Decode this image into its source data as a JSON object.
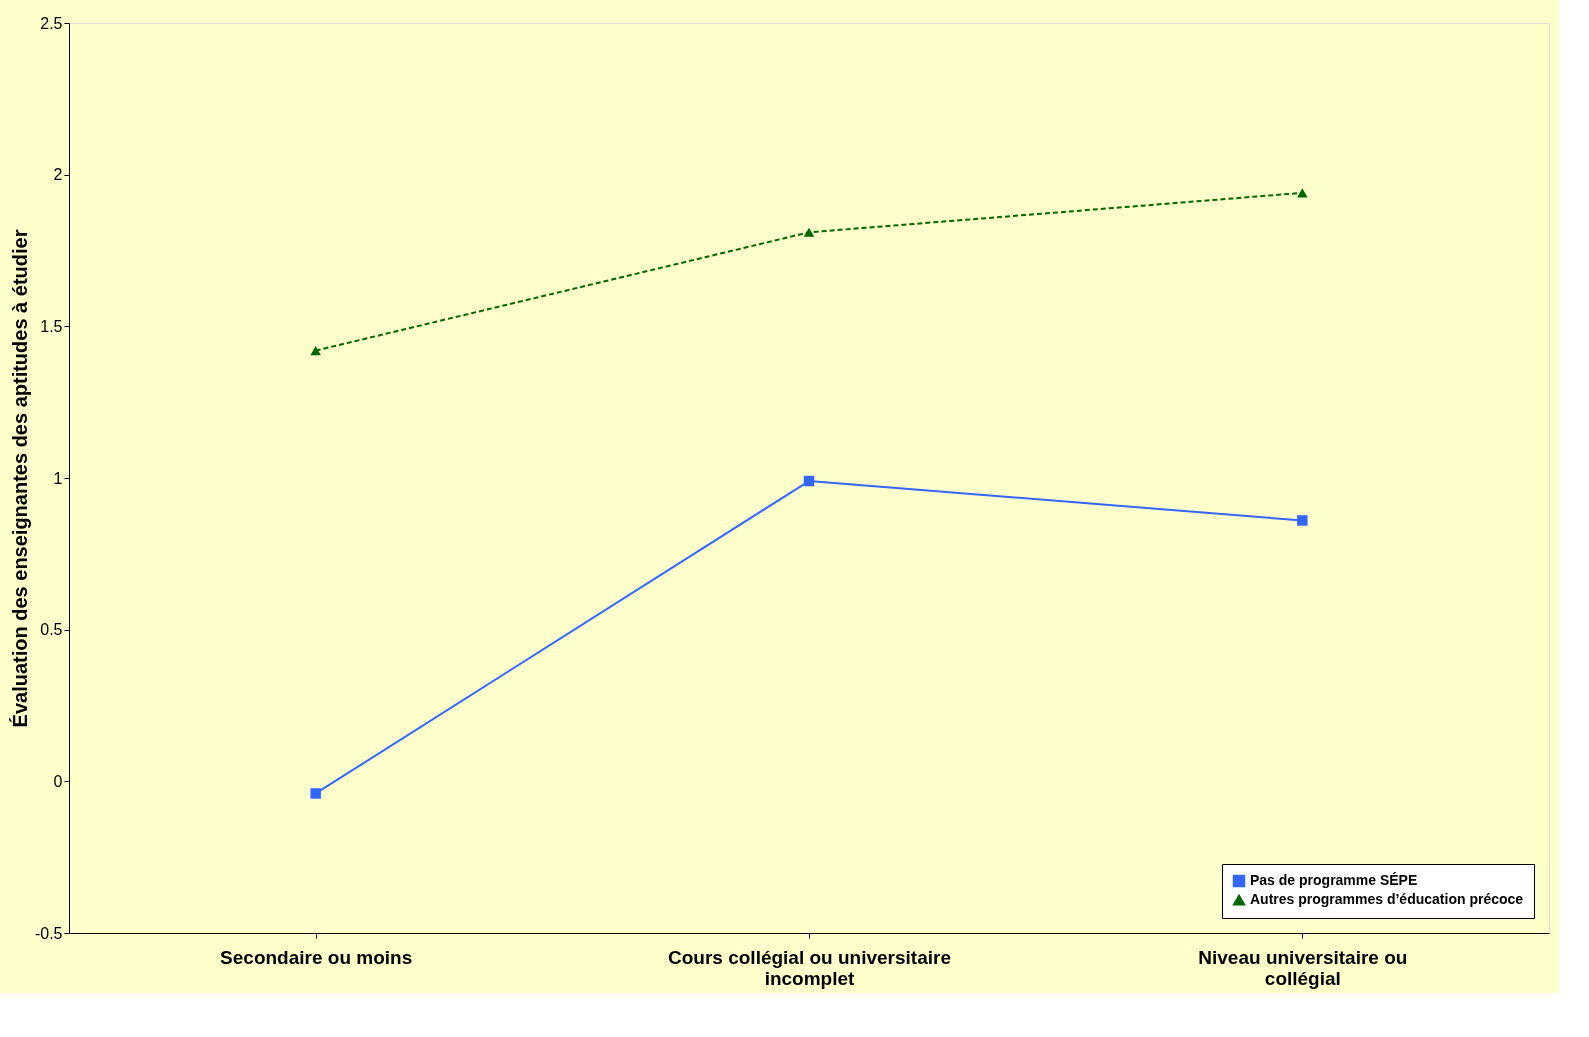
{
  "chart_data": {
    "type": "line",
    "ylabel": "Évaluation des enseignantes des aptitudes à étudier",
    "categories": [
      "Secondaire ou moins",
      "Cours collégial ou universitaire incomplet",
      "Niveau universitaire ou collégial"
    ],
    "series": [
      {
        "name": "Pas de programme SÉPE",
        "color": "#3366ff",
        "values": [
          -0.04,
          0.99,
          0.86
        ],
        "marker": "square",
        "line_style": "solid"
      },
      {
        "name": "Autres programmes d’éducation précoce",
        "color": "#006600",
        "values": [
          1.42,
          1.81,
          1.94
        ],
        "marker": "triangle",
        "line_style": "dashed"
      }
    ],
    "ylim": [
      -0.5,
      2.5
    ],
    "yticks": [
      -0.5,
      0,
      0.5,
      1,
      1.5,
      2,
      2.5
    ],
    "grid": false,
    "legend": "bottom right"
  }
}
